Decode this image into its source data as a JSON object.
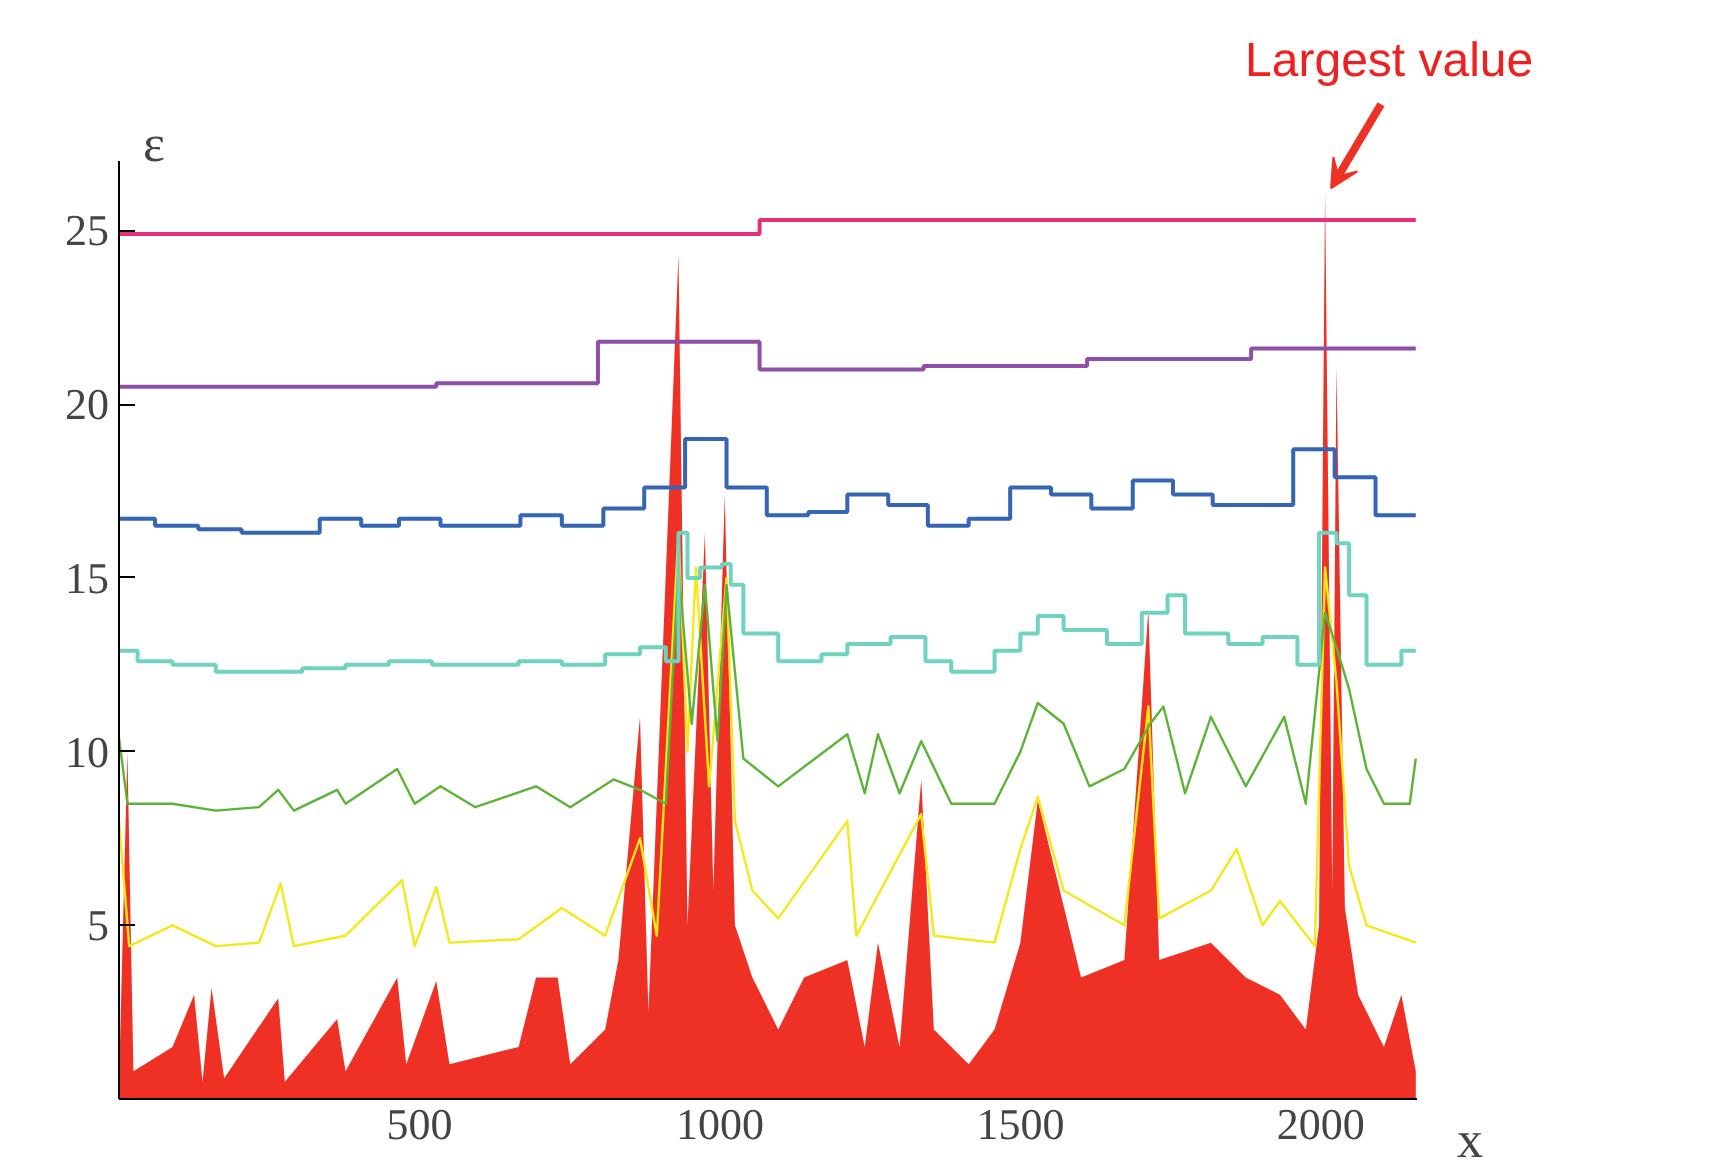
{
  "chart_data": {
    "type": "step",
    "xlabel": "x",
    "ylabel": "ε",
    "xlim": [
      0,
      2160
    ],
    "ylim": [
      0,
      27
    ],
    "xticks": [
      500,
      1000,
      1500,
      2000
    ],
    "yticks": [
      5,
      10,
      15,
      20,
      25
    ],
    "grid": false,
    "marker": "none",
    "annotations": [
      {
        "text": "Largest value",
        "x": 2007,
        "y": 26.1
      }
    ],
    "series": [
      {
        "type": "area",
        "color": "#ee3124",
        "x": [
          0,
          14,
          24,
          89,
          125,
          139,
          154,
          175,
          265,
          276,
          363,
          377,
          463,
          478,
          528,
          550,
          665,
          694,
          730,
          751,
          809,
          831,
          867,
          881,
          931,
          946,
          975,
          989,
          1008,
          1025,
          1054,
          1097,
          1140,
          1212,
          1241,
          1263,
          1299,
          1335,
          1356,
          1414,
          1457,
          1500,
          1529,
          1601,
          1673,
          1713,
          1731,
          1817,
          1875,
          1932,
          1975,
          1997,
          2007,
          2019,
          2026,
          2040,
          2062,
          2105,
          2134,
          2158
        ],
        "values": [
          0.5,
          10.0,
          0.8,
          1.5,
          3.0,
          0.5,
          3.2,
          0.6,
          2.9,
          0.5,
          2.3,
          0.8,
          3.5,
          1.0,
          3.4,
          1.0,
          1.5,
          3.5,
          3.5,
          1.0,
          2.0,
          4.0,
          11.0,
          2.5,
          24.3,
          5.0,
          16.3,
          6.0,
          17.4,
          5.0,
          3.5,
          2.0,
          3.5,
          4.0,
          1.5,
          4.5,
          1.5,
          9.2,
          2.0,
          1.0,
          2.0,
          4.5,
          8.6,
          3.5,
          4.0,
          14.1,
          4.0,
          4.5,
          3.5,
          3.0,
          2.0,
          5.0,
          26.1,
          6.0,
          21.1,
          5.5,
          3.0,
          1.5,
          3.0,
          0.8
        ]
      },
      {
        "type": "line",
        "color": "#f5e818",
        "x": [
          0,
          17,
          89,
          161,
          233,
          269,
          291,
          377,
          471,
          492,
          528,
          550,
          665,
          737,
          809,
          867,
          895,
          931,
          946,
          960,
          982,
          1011,
          1025,
          1054,
          1097,
          1212,
          1227,
          1335,
          1356,
          1457,
          1500,
          1529,
          1572,
          1673,
          1713,
          1731,
          1817,
          1860,
          1903,
          1932,
          1990,
          2007,
          2026,
          2047,
          2076,
          2158
        ],
        "values": [
          8.0,
          4.4,
          5.0,
          4.4,
          4.5,
          6.2,
          4.4,
          4.7,
          6.3,
          4.4,
          6.1,
          4.5,
          4.6,
          5.5,
          4.7,
          7.5,
          4.7,
          16.3,
          10.0,
          15.3,
          9.0,
          15.0,
          8.0,
          6.0,
          5.2,
          8.0,
          4.7,
          8.2,
          4.7,
          4.5,
          7.2,
          8.7,
          6.0,
          5.0,
          11.3,
          5.2,
          6.0,
          7.2,
          5.0,
          5.7,
          4.4,
          15.3,
          12.0,
          6.7,
          5.0,
          4.5
        ]
      },
      {
        "type": "line",
        "color": "#5cb338",
        "x": [
          0,
          14,
          89,
          161,
          233,
          265,
          291,
          363,
          377,
          463,
          492,
          535,
          593,
          694,
          751,
          823,
          867,
          910,
          931,
          953,
          975,
          996,
          1011,
          1039,
          1097,
          1212,
          1241,
          1263,
          1299,
          1335,
          1385,
          1457,
          1500,
          1529,
          1572,
          1615,
          1673,
          1716,
          1738,
          1774,
          1817,
          1875,
          1939,
          1975,
          2007,
          2026,
          2047,
          2076,
          2105,
          2148,
          2158
        ],
        "values": [
          10.4,
          8.5,
          8.5,
          8.3,
          8.4,
          8.9,
          8.3,
          8.9,
          8.5,
          9.5,
          8.5,
          9.0,
          8.4,
          9.0,
          8.4,
          9.2,
          8.9,
          8.5,
          15.3,
          10.8,
          14.8,
          10.3,
          14.8,
          9.8,
          9.0,
          10.5,
          8.8,
          10.5,
          8.8,
          10.3,
          8.5,
          8.5,
          10.0,
          11.4,
          10.8,
          9.0,
          9.5,
          10.8,
          11.3,
          8.8,
          11.0,
          9.0,
          11.0,
          8.5,
          14.0,
          13.0,
          11.8,
          9.5,
          8.5,
          8.5,
          9.8
        ]
      },
      {
        "color": "#6fd3c0",
        "x": [
          0,
          31,
          89,
          161,
          233,
          305,
          377,
          449,
          521,
          593,
          665,
          737,
          809,
          867,
          910,
          931,
          946,
          967,
          1003,
          1018,
          1039,
          1097,
          1169,
          1212,
          1284,
          1342,
          1385,
          1457,
          1500,
          1529,
          1572,
          1644,
          1702,
          1745,
          1774,
          1846,
          1903,
          1961,
          1997,
          2026,
          2047,
          2076,
          2134,
          2158
        ],
        "values": [
          12.9,
          12.6,
          12.5,
          12.3,
          12.3,
          12.4,
          12.5,
          12.6,
          12.5,
          12.5,
          12.6,
          12.5,
          12.8,
          13.0,
          12.6,
          16.3,
          15.0,
          15.3,
          15.4,
          14.8,
          13.4,
          12.6,
          12.8,
          13.1,
          13.3,
          12.6,
          12.3,
          12.9,
          13.4,
          13.9,
          13.5,
          13.1,
          14.0,
          14.5,
          13.4,
          13.1,
          13.3,
          12.5,
          16.3,
          16.0,
          14.5,
          12.5,
          12.9,
          12.9
        ]
      },
      {
        "color": "#3565b5",
        "x": [
          0,
          60,
          132,
          204,
          265,
          334,
          403,
          466,
          535,
          668,
          737,
          806,
          874,
          942,
          1011,
          1078,
          1147,
          1212,
          1280,
          1346,
          1414,
          1483,
          1551,
          1618,
          1687,
          1754,
          1820,
          1954,
          2023,
          2091,
          2158
        ],
        "values": [
          16.7,
          16.5,
          16.4,
          16.3,
          16.3,
          16.7,
          16.5,
          16.7,
          16.5,
          16.8,
          16.5,
          17.0,
          17.6,
          19.0,
          17.6,
          16.8,
          16.9,
          17.4,
          17.1,
          16.5,
          16.7,
          17.6,
          17.4,
          17.0,
          17.8,
          17.4,
          17.1,
          18.7,
          17.9,
          16.8,
          16.8
        ]
      },
      {
        "color": "#8e4fa8",
        "x": [
          0,
          528,
          797,
          1066,
          1339,
          1611,
          1884,
          2158
        ],
        "values": [
          20.5,
          20.6,
          21.8,
          21.0,
          21.1,
          21.3,
          21.6,
          21.6
        ]
      },
      {
        "color": "#e8307a",
        "x": [
          0,
          1066,
          2158
        ],
        "values": [
          24.9,
          25.3,
          25.3
        ]
      }
    ]
  }
}
